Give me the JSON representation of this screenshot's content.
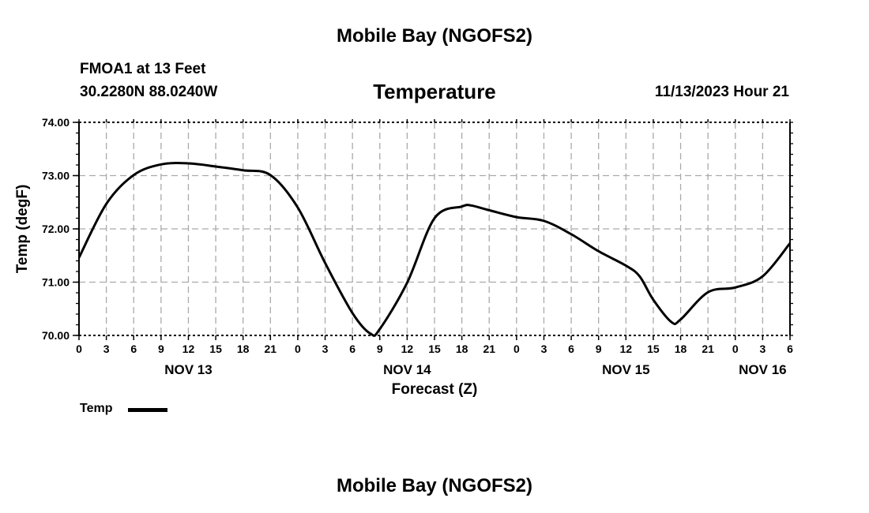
{
  "chart_data": {
    "type": "line",
    "title": "Mobile Bay (NGOFS2)",
    "subtitle": "Temperature",
    "station": "FMOA1 at 13 Feet",
    "location": "30.2280N  88.0240W",
    "timestamp": "11/13/2023 Hour 21",
    "footer_title": "Mobile Bay (NGOFS2)",
    "xlabel": "Forecast (Z)",
    "ylabel": "Temp (degF)",
    "ylim": [
      70,
      74
    ],
    "xlim_hours": [
      0,
      78
    ],
    "y_ticks": [
      "70.00",
      "71.00",
      "72.00",
      "73.00",
      "74.00"
    ],
    "x_tick_labels": [
      "0",
      "3",
      "6",
      "9",
      "12",
      "15",
      "18",
      "21",
      "0",
      "3",
      "6",
      "9",
      "12",
      "15",
      "18",
      "21",
      "0",
      "3",
      "6",
      "9",
      "12",
      "15",
      "18",
      "21",
      "0",
      "3",
      "6"
    ],
    "date_labels": [
      {
        "label": "NOV 13",
        "hour": 12
      },
      {
        "label": "NOV 14",
        "hour": 36
      },
      {
        "label": "NOV 15",
        "hour": 60
      },
      {
        "label": "NOV 16",
        "hour": 75
      }
    ],
    "grid": true,
    "legend": [
      {
        "name": "Temp",
        "color": "#000000"
      }
    ],
    "series": [
      {
        "name": "Temp",
        "x_hours": [
          0,
          3,
          6,
          9,
          12,
          15,
          18,
          21,
          24,
          27,
          30,
          32,
          33,
          36,
          39,
          42,
          43,
          45,
          48,
          51,
          54,
          57,
          60,
          61.5,
          63,
          65,
          66,
          69,
          72,
          75,
          78
        ],
        "values": [
          71.46,
          72.47,
          73.01,
          73.21,
          73.23,
          73.17,
          73.1,
          73.01,
          72.4,
          71.36,
          70.42,
          70.03,
          70.12,
          70.99,
          72.2,
          72.42,
          72.44,
          72.35,
          72.22,
          72.15,
          71.9,
          71.58,
          71.31,
          71.11,
          70.67,
          70.25,
          70.3,
          70.81,
          70.9,
          71.11,
          71.73
        ]
      }
    ]
  }
}
